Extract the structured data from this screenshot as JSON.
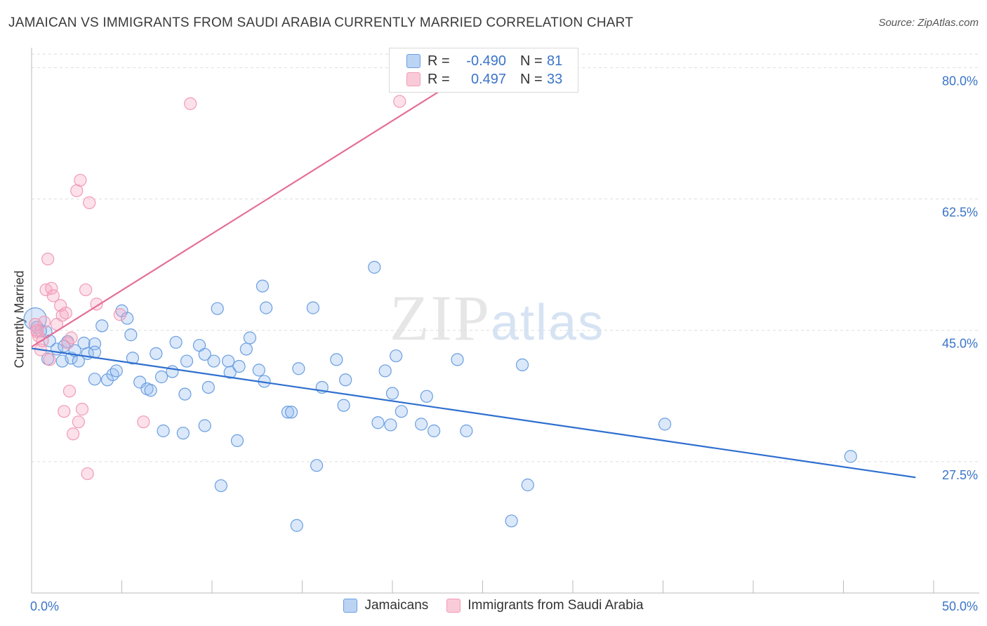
{
  "title": "JAMAICAN VS IMMIGRANTS FROM SAUDI ARABIA CURRENTLY MARRIED CORRELATION CHART",
  "source": "Source: ZipAtlas.com",
  "watermark": {
    "zip": "ZIP",
    "atlas": "atlas"
  },
  "legend": {
    "rows": [
      {
        "r_label": "R =",
        "r_value": "-0.490",
        "n_label": "N =",
        "n_value": "81"
      },
      {
        "r_label": "R =",
        "r_value": "0.497",
        "n_label": "N =",
        "n_value": "33"
      }
    ]
  },
  "bottom_legend": {
    "series1": "Jamaicans",
    "series2": "Immigrants from Saudi Arabia"
  },
  "chart_data": {
    "type": "scatter",
    "title": "JAMAICAN VS IMMIGRANTS FROM SAUDI ARABIA CURRENTLY MARRIED CORRELATION CHART",
    "xlabel": "",
    "ylabel": "Currently Married",
    "xlim": [
      0,
      50
    ],
    "ylim": [
      10,
      82
    ],
    "x_tick_labels": [
      "0.0%",
      "50.0%"
    ],
    "y_ticks": [
      27.5,
      45.0,
      62.5,
      80.0
    ],
    "y_tick_labels": [
      "27.5%",
      "45.0%",
      "62.5%",
      "80.0%"
    ],
    "grid": "horizontal dashed",
    "legend_placement": "top-center",
    "colors": {
      "jamaicans": "#6a9ee0",
      "saudi": "#f19bb6",
      "jam_line": "#2f6fcf",
      "saudi_line": "#e46f97",
      "tick_label": "#3a74c8"
    },
    "series": [
      {
        "name": "Jamaicans",
        "trend": {
          "x": [
            0,
            49.0
          ],
          "y": [
            42.6,
            25.4
          ]
        },
        "points": [
          [
            0.2,
            46.5
          ],
          [
            0.3,
            45.4
          ],
          [
            0.8,
            44.8
          ],
          [
            1.0,
            43.6
          ],
          [
            0.9,
            41.2
          ],
          [
            1.4,
            42.5
          ],
          [
            1.7,
            40.9
          ],
          [
            2.0,
            43.5
          ],
          [
            2.2,
            41.3
          ],
          [
            2.4,
            42.3
          ],
          [
            2.6,
            40.9
          ],
          [
            2.9,
            43.3
          ],
          [
            3.1,
            41.9
          ],
          [
            3.5,
            43.2
          ],
          [
            3.5,
            42.1
          ],
          [
            3.5,
            38.5
          ],
          [
            3.9,
            45.6
          ],
          [
            4.2,
            38.4
          ],
          [
            4.5,
            39.1
          ],
          [
            4.7,
            39.6
          ],
          [
            5.0,
            47.6
          ],
          [
            5.3,
            46.6
          ],
          [
            5.5,
            44.4
          ],
          [
            5.6,
            41.3
          ],
          [
            6.0,
            38.1
          ],
          [
            6.4,
            37.2
          ],
          [
            6.6,
            37.0
          ],
          [
            6.9,
            41.9
          ],
          [
            7.2,
            38.8
          ],
          [
            7.8,
            39.5
          ],
          [
            8.0,
            43.4
          ],
          [
            8.5,
            36.5
          ],
          [
            8.6,
            40.9
          ],
          [
            9.3,
            43.0
          ],
          [
            9.6,
            41.8
          ],
          [
            9.8,
            37.4
          ],
          [
            10.1,
            40.9
          ],
          [
            10.3,
            47.9
          ],
          [
            10.9,
            40.9
          ],
          [
            11.0,
            39.4
          ],
          [
            11.5,
            40.2
          ],
          [
            11.9,
            42.5
          ],
          [
            12.1,
            44.0
          ],
          [
            12.6,
            39.7
          ],
          [
            12.9,
            38.2
          ],
          [
            12.8,
            50.9
          ],
          [
            13.0,
            48.0
          ],
          [
            14.2,
            34.1
          ],
          [
            14.4,
            34.1
          ],
          [
            14.7,
            19.0
          ],
          [
            14.8,
            39.9
          ],
          [
            15.8,
            27.0
          ],
          [
            16.1,
            37.4
          ],
          [
            16.9,
            41.1
          ],
          [
            17.3,
            35.0
          ],
          [
            17.4,
            38.4
          ],
          [
            19.0,
            53.4
          ],
          [
            19.2,
            32.7
          ],
          [
            19.6,
            39.6
          ],
          [
            19.9,
            32.4
          ],
          [
            20.0,
            36.6
          ],
          [
            20.2,
            41.6
          ],
          [
            20.5,
            34.2
          ],
          [
            21.6,
            32.5
          ],
          [
            21.9,
            36.2
          ],
          [
            22.3,
            31.6
          ],
          [
            23.6,
            41.1
          ],
          [
            24.1,
            31.6
          ],
          [
            26.6,
            19.6
          ],
          [
            27.5,
            24.4
          ],
          [
            27.2,
            40.4
          ],
          [
            35.1,
            32.5
          ],
          [
            45.4,
            28.2
          ],
          [
            7.3,
            31.6
          ],
          [
            8.4,
            31.3
          ],
          [
            9.6,
            32.3
          ],
          [
            11.4,
            30.3
          ],
          [
            10.5,
            24.3
          ],
          [
            15.6,
            48.0
          ],
          [
            0.5,
            44.9
          ],
          [
            1.8,
            42.9
          ]
        ]
      },
      {
        "name": "Immigrants from Saudi Arabia",
        "trend": {
          "x": [
            0,
            24.3
          ],
          "y": [
            42.8,
            79.4
          ]
        },
        "points": [
          [
            0.2,
            45.8
          ],
          [
            0.3,
            44.8
          ],
          [
            0.4,
            44.2
          ],
          [
            0.5,
            42.4
          ],
          [
            0.6,
            43.6
          ],
          [
            0.7,
            46.1
          ],
          [
            0.8,
            50.4
          ],
          [
            0.9,
            54.5
          ],
          [
            1.0,
            41.1
          ],
          [
            1.1,
            50.6
          ],
          [
            1.2,
            49.6
          ],
          [
            1.4,
            45.8
          ],
          [
            1.6,
            48.3
          ],
          [
            1.7,
            47.0
          ],
          [
            1.8,
            34.2
          ],
          [
            1.9,
            47.3
          ],
          [
            2.0,
            43.3
          ],
          [
            2.1,
            36.9
          ],
          [
            2.2,
            44.0
          ],
          [
            2.3,
            31.2
          ],
          [
            2.5,
            63.6
          ],
          [
            2.6,
            32.8
          ],
          [
            2.7,
            65.0
          ],
          [
            2.8,
            34.5
          ],
          [
            3.0,
            50.4
          ],
          [
            3.1,
            25.9
          ],
          [
            3.2,
            62.0
          ],
          [
            3.6,
            48.5
          ],
          [
            4.9,
            47.1
          ],
          [
            6.2,
            32.8
          ],
          [
            8.8,
            75.2
          ],
          [
            20.4,
            75.5
          ],
          [
            0.3,
            45.0
          ]
        ]
      }
    ]
  }
}
